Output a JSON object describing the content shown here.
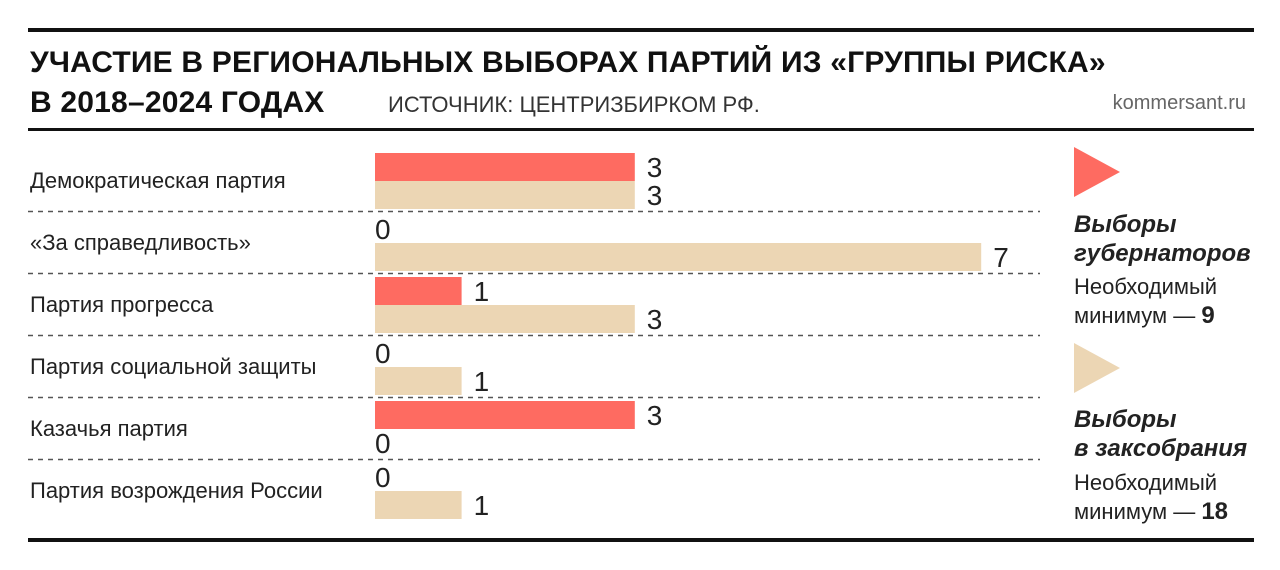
{
  "header": {
    "title_line1": "УЧАСТИЕ В РЕГИОНАЛЬНЫХ ВЫБОРАХ ПАРТИЙ ИЗ «ГРУППЫ РИСКА»",
    "title_line2": "В 2018–2024 ГОДАХ",
    "source": "ИСТОЧНИК: ЦЕНТРИЗБИРКОМ РФ.",
    "site": "kommersant.ru"
  },
  "legend": {
    "governors": {
      "title": "Выборы\nгубернаторов",
      "note_line1": "Необходимый",
      "note_prefix": "минимум — ",
      "note_value": "9",
      "color": "#fe6b61"
    },
    "assemblies": {
      "title": "Выборы\nв заксобрания",
      "note_line1": "Необходимый",
      "note_prefix": "минимум — ",
      "note_value": "18",
      "color": "#ecd6b4"
    }
  },
  "chart_data": {
    "type": "bar",
    "orientation": "horizontal",
    "categories": [
      "Демократическая партия",
      "«За справедливость»",
      "Партия прогресса",
      "Партия социальной защиты",
      "Казачья партия",
      "Партия возрождения России"
    ],
    "series": [
      {
        "name": "Выборы губернаторов",
        "color": "#fe6b61",
        "values": [
          3,
          0,
          1,
          0,
          3,
          0
        ]
      },
      {
        "name": "Выборы в заксобрания",
        "color": "#ecd6b4",
        "values": [
          3,
          7,
          3,
          1,
          0,
          1
        ]
      }
    ],
    "xlim": [
      0,
      7
    ],
    "grid": false,
    "legend_position": "right"
  }
}
